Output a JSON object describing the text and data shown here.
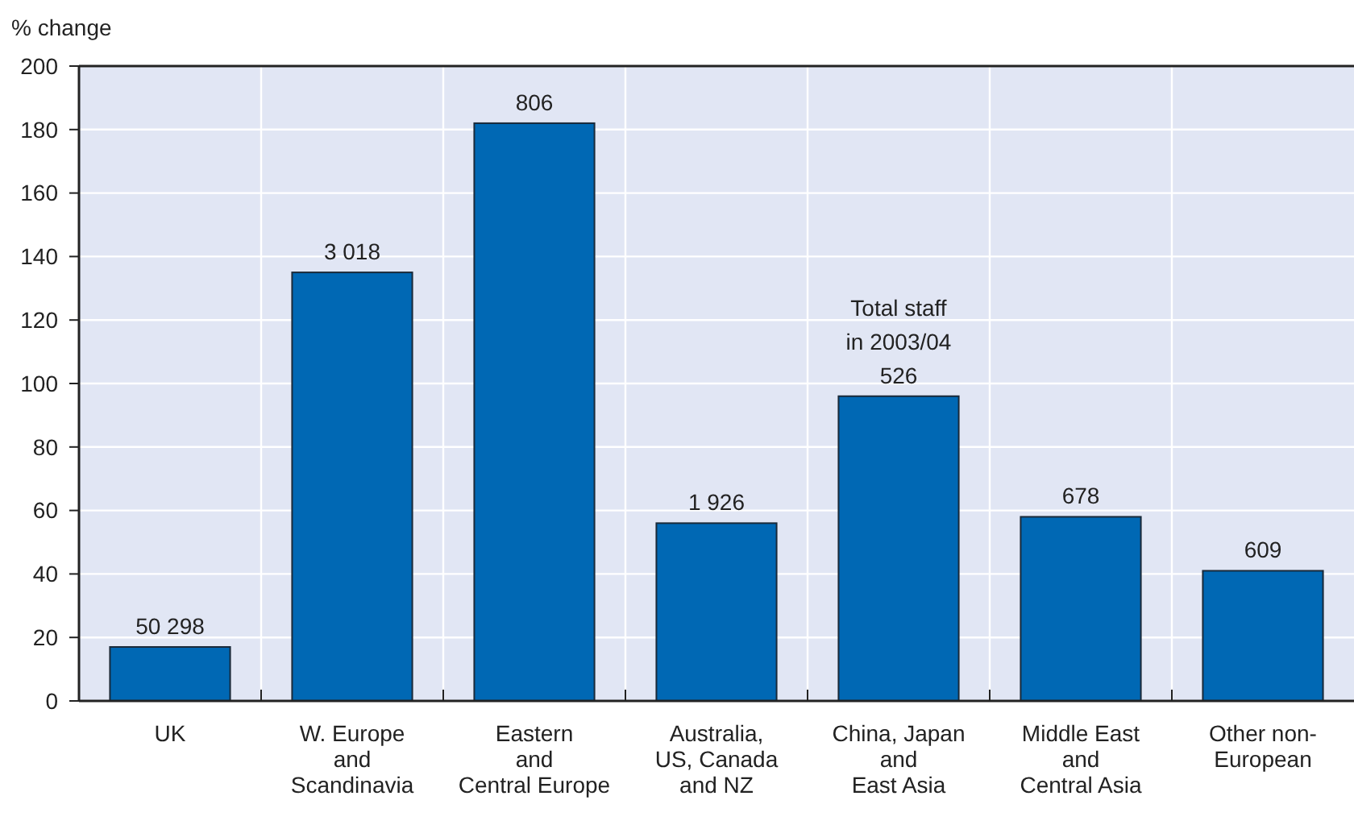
{
  "chart_data": {
    "type": "bar",
    "ylabel": "% change",
    "categories": [
      "UK",
      "W. Europe\nand\nScandinavia",
      "Eastern\nand\nCentral Europe",
      "Australia,\nUS, Canada\nand NZ",
      "China, Japan\nand\nEast Asia",
      "Middle East\nand\nCentral Asia",
      "Other non-\nEuropean"
    ],
    "values": [
      17,
      135,
      182,
      56,
      96,
      58,
      41
    ],
    "color": "#0068b4",
    "ylim": [
      0,
      200
    ],
    "yticks": [
      0,
      20,
      40,
      60,
      80,
      100,
      120,
      140,
      160,
      180,
      200
    ],
    "grid": true,
    "annotations": [
      {
        "text": "50 298",
        "x": "UK",
        "y": 17
      },
      {
        "text": "3 018",
        "x": "W. Europe\nand\nScandinavia",
        "y": 135
      },
      {
        "text": "806",
        "x": "Eastern\nand\nCentral Europe",
        "y": 182
      },
      {
        "text": "1 926",
        "x": "Australia,\nUS, Canada\nand NZ",
        "y": 56
      },
      {
        "text": "Total staff\nin 2003/04\n526",
        "x": "China, Japan\nand\nEast Asia",
        "y": 96
      },
      {
        "text": "678",
        "x": "Middle East\nand\nCentral Asia",
        "y": 58
      },
      {
        "text": "609",
        "x": "Other non-\nEuropean",
        "y": 41
      }
    ]
  }
}
